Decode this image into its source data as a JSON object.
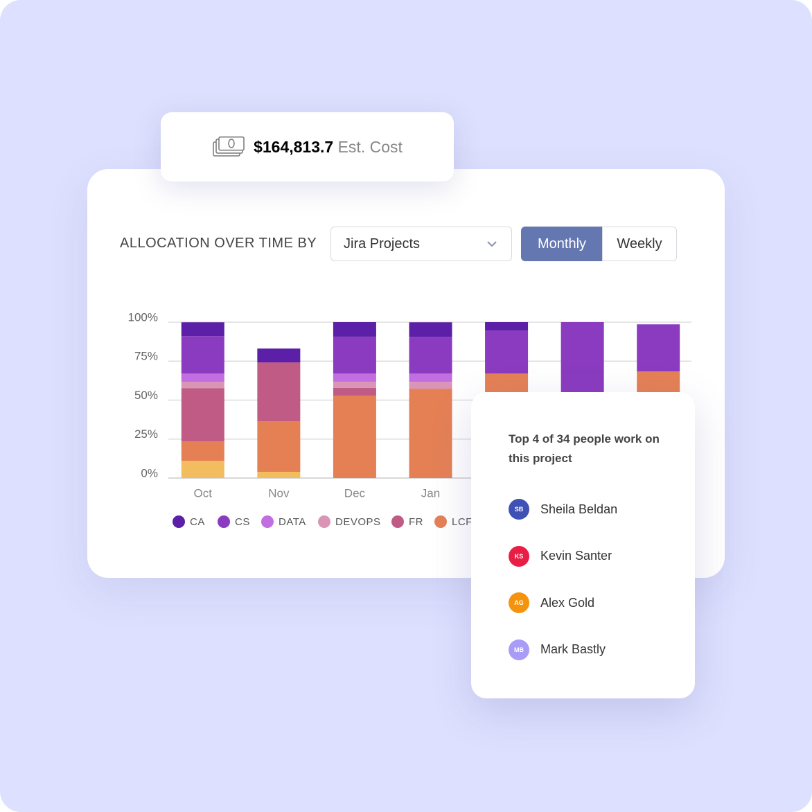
{
  "cost": {
    "amount": "$164,813.7",
    "label": "Est. Cost"
  },
  "controls": {
    "heading": "ALLOCATION OVER TIME BY",
    "dropdown": "Jira Projects",
    "toggle": [
      "Monthly",
      "Weekly"
    ]
  },
  "chart_data": {
    "type": "stacked-bar",
    "categories": [
      "Oct",
      "Nov",
      "Dec",
      "Jan",
      null,
      null,
      null
    ],
    "ylim": [
      0,
      100
    ],
    "yticks": [
      {
        "value": 0,
        "label": "0%"
      },
      {
        "value": 25,
        "label": "25%"
      },
      {
        "value": 50,
        "label": "50%"
      },
      {
        "value": 75,
        "label": "75%"
      },
      {
        "value": 100,
        "label": "100%"
      }
    ],
    "grid": true,
    "series": [
      {
        "name": null,
        "color": "#f2bd5f",
        "values": [
          11.1,
          4,
          0,
          0,
          0,
          0,
          0
        ]
      },
      {
        "name": "LCF",
        "color": "#e58055",
        "values": [
          12.4,
          32.4,
          52.9,
          57.3,
          67.1,
          0,
          68.4
        ]
      },
      {
        "name": "FR",
        "color": "#bf5b85",
        "values": [
          34.2,
          37.8,
          4.9,
          0,
          0,
          0,
          0
        ]
      },
      {
        "name": "DEVOPS",
        "color": "#d995b5",
        "values": [
          4,
          0,
          4,
          4.4,
          0,
          0,
          0
        ]
      },
      {
        "name": "DATA",
        "color": "#c26ee0",
        "values": [
          5.3,
          0,
          5.3,
          5.3,
          0,
          0,
          0
        ]
      },
      {
        "name": "CS",
        "color": "#8a3bbf",
        "values": [
          24,
          0,
          23.6,
          23.6,
          27.6,
          100,
          30.2
        ]
      },
      {
        "name": "CA",
        "color": "#5b1fa8",
        "values": [
          8.9,
          8.9,
          9.3,
          9.3,
          5.3,
          0,
          0
        ]
      }
    ]
  },
  "popup": {
    "title": "Top 4 of 34 people work on this project",
    "people": [
      {
        "initials": "SB",
        "name": "Sheila Beldan"
      },
      {
        "initials": "KS",
        "name": "Kevin Santer"
      },
      {
        "initials": "AG",
        "name": "Alex Gold"
      },
      {
        "initials": "MB",
        "name": "Mark Bastly"
      }
    ]
  }
}
